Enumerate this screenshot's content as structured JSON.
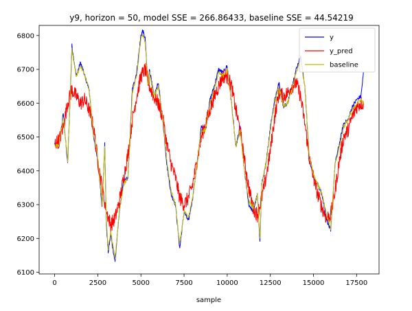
{
  "chart_data": {
    "type": "line",
    "title": "y9, horizon = 50, model SSE = 266.86433, baseline SSE = 44.54219",
    "xlabel": "sample",
    "ylabel": "",
    "xlim": [
      -900,
      18800
    ],
    "ylim": [
      6095,
      6830
    ],
    "x_ticks": [
      0,
      2500,
      5000,
      7500,
      10000,
      12500,
      15000,
      17500
    ],
    "y_ticks": [
      6100,
      6200,
      6300,
      6400,
      6500,
      6600,
      6700,
      6800
    ],
    "legend_position": "upper right",
    "grid": false,
    "series": [
      {
        "name": "y",
        "color": "#0000ff",
        "x": [
          0,
          250,
          500,
          750,
          900,
          1000,
          1250,
          1500,
          1750,
          2000,
          2250,
          2500,
          2750,
          2900,
          3000,
          3100,
          3250,
          3500,
          3750,
          4000,
          4250,
          4500,
          4750,
          5000,
          5100,
          5250,
          5400,
          5500,
          5750,
          6000,
          6250,
          6500,
          6750,
          7000,
          7250,
          7500,
          7750,
          8000,
          8250,
          8500,
          8750,
          9000,
          9250,
          9500,
          9750,
          10000,
          10250,
          10500,
          10750,
          11000,
          11250,
          11500,
          11750,
          11900,
          12000,
          12250,
          12500,
          12750,
          13000,
          13250,
          13500,
          13750,
          14000,
          14250,
          14500,
          14750,
          15000,
          15250,
          15500,
          15750,
          16000,
          16250,
          16500,
          16750,
          17000,
          17250,
          17500,
          17750,
          17900
        ],
        "values": [
          6480,
          6470,
          6570,
          6420,
          6620,
          6770,
          6680,
          6720,
          6680,
          6640,
          6500,
          6430,
          6290,
          6480,
          6240,
          6160,
          6210,
          6130,
          6280,
          6370,
          6380,
          6640,
          6690,
          6800,
          6815,
          6790,
          6650,
          6700,
          6620,
          6660,
          6560,
          6420,
          6330,
          6300,
          6170,
          6280,
          6250,
          6320,
          6420,
          6530,
          6520,
          6610,
          6650,
          6700,
          6690,
          6710,
          6600,
          6470,
          6530,
          6400,
          6300,
          6280,
          6330,
          6190,
          6360,
          6420,
          6530,
          6610,
          6660,
          6590,
          6600,
          6650,
          6700,
          6740,
          6650,
          6440,
          6380,
          6360,
          6330,
          6260,
          6220,
          6420,
          6480,
          6540,
          6550,
          6590,
          6610,
          6620,
          6690
        ]
      },
      {
        "name": "y_pred",
        "color": "#ff0000",
        "x": [
          0,
          250,
          500,
          750,
          1000,
          1250,
          1500,
          1750,
          2000,
          2250,
          2500,
          2750,
          3000,
          3250,
          3500,
          3750,
          4000,
          4250,
          4500,
          4750,
          5000,
          5250,
          5500,
          5750,
          6000,
          6250,
          6500,
          6750,
          7000,
          7250,
          7500,
          7750,
          8000,
          8250,
          8500,
          8750,
          9000,
          9250,
          9500,
          9750,
          10000,
          10250,
          10500,
          10750,
          11000,
          11250,
          11500,
          11750,
          12000,
          12250,
          12500,
          12750,
          13000,
          13250,
          13500,
          13750,
          14000,
          14250,
          14500,
          14750,
          15000,
          15250,
          15500,
          15750,
          16000,
          16250,
          16500,
          16750,
          17000,
          17250,
          17500,
          17750,
          17900
        ],
        "values": [
          6480,
          6490,
          6530,
          6600,
          6640,
          6620,
          6600,
          6610,
          6580,
          6530,
          6430,
          6350,
          6280,
          6240,
          6260,
          6310,
          6380,
          6450,
          6550,
          6620,
          6680,
          6700,
          6650,
          6620,
          6600,
          6560,
          6480,
          6420,
          6380,
          6320,
          6300,
          6320,
          6360,
          6430,
          6500,
          6540,
          6580,
          6620,
          6650,
          6680,
          6680,
          6650,
          6580,
          6520,
          6430,
          6350,
          6290,
          6270,
          6320,
          6380,
          6460,
          6560,
          6630,
          6620,
          6630,
          6650,
          6660,
          6620,
          6540,
          6440,
          6380,
          6330,
          6290,
          6260,
          6270,
          6340,
          6430,
          6500,
          6520,
          6560,
          6590,
          6600,
          6600
        ]
      },
      {
        "name": "baseline",
        "color": "#bfbf00",
        "x": [
          0,
          250,
          500,
          750,
          900,
          1000,
          1250,
          1500,
          1750,
          2000,
          2250,
          2500,
          2750,
          2900,
          3000,
          3100,
          3250,
          3500,
          3750,
          4000,
          4250,
          4500,
          4750,
          5000,
          5100,
          5250,
          5400,
          5500,
          5750,
          6000,
          6250,
          6500,
          6750,
          7000,
          7250,
          7500,
          7750,
          8000,
          8250,
          8500,
          8750,
          9000,
          9250,
          9500,
          9750,
          10000,
          10250,
          10500,
          10750,
          11000,
          11250,
          11500,
          11750,
          11900,
          12000,
          12250,
          12500,
          12750,
          13000,
          13250,
          13500,
          13750,
          14000,
          14250,
          14500,
          14750,
          15000,
          15250,
          15500,
          15750,
          16000,
          16250,
          16500,
          16750,
          17000,
          17250,
          17500,
          17750,
          17900
        ],
        "values": [
          6475,
          6475,
          6560,
          6430,
          6610,
          6760,
          6680,
          6710,
          6680,
          6640,
          6510,
          6440,
          6300,
          6470,
          6250,
          6170,
          6220,
          6140,
          6280,
          6360,
          6380,
          6630,
          6680,
          6790,
          6800,
          6780,
          6650,
          6690,
          6620,
          6650,
          6560,
          6430,
          6340,
          6300,
          6180,
          6280,
          6260,
          6320,
          6420,
          6520,
          6520,
          6600,
          6640,
          6690,
          6680,
          6700,
          6600,
          6470,
          6520,
          6400,
          6310,
          6290,
          6330,
          6200,
          6360,
          6420,
          6520,
          6600,
          6650,
          6590,
          6600,
          6640,
          6690,
          6730,
          6650,
          6450,
          6390,
          6360,
          6330,
          6270,
          6230,
          6420,
          6470,
          6530,
          6550,
          6580,
          6600,
          6610,
          6600
        ]
      }
    ]
  }
}
